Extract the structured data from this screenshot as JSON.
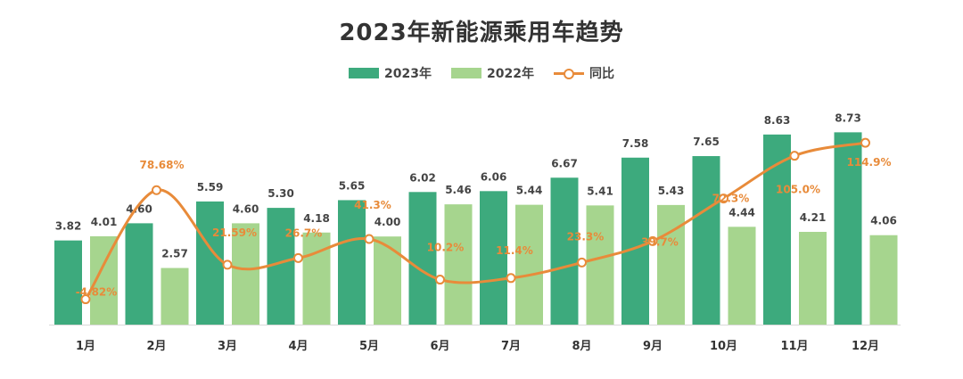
{
  "chart_data": {
    "type": "bar",
    "title": "2023年新能源乘用车趋势",
    "categories": [
      "1月",
      "2月",
      "3月",
      "4月",
      "5月",
      "6月",
      "7月",
      "8月",
      "9月",
      "10月",
      "11月",
      "12月"
    ],
    "series": [
      {
        "name": "2023年",
        "type": "bar",
        "color": "#3DAA7D",
        "values": [
          3.82,
          4.6,
          5.59,
          5.3,
          5.65,
          6.02,
          6.06,
          6.67,
          7.58,
          7.65,
          8.63,
          8.73
        ],
        "labels": [
          "3.82",
          "4.60",
          "5.59",
          "5.30",
          "5.65",
          "6.02",
          "6.06",
          "6.67",
          "7.58",
          "7.65",
          "8.63",
          "8.73"
        ]
      },
      {
        "name": "2022年",
        "type": "bar",
        "color": "#A6D58E",
        "values": [
          4.01,
          2.57,
          4.6,
          4.18,
          4.0,
          5.46,
          5.44,
          5.41,
          5.43,
          4.44,
          4.21,
          4.06
        ],
        "labels": [
          "4.01",
          "2.57",
          "4.60",
          "4.18",
          "4.00",
          "5.46",
          "5.44",
          "5.41",
          "5.43",
          "4.44",
          "4.21",
          "4.06"
        ]
      },
      {
        "name": "同比",
        "type": "line",
        "color": "#E88B3A",
        "values": [
          -4.82,
          78.68,
          21.59,
          26.7,
          41.3,
          10.2,
          11.4,
          23.3,
          39.7,
          72.3,
          105.0,
          114.9
        ],
        "labels": [
          "-4.82%",
          "78.68%",
          "21.59%",
          "26.7%",
          "41.3%",
          "10.2%",
          "11.4%",
          "23.3%",
          "39.7%",
          "72.3%",
          "105.0%",
          "114.9%"
        ]
      }
    ],
    "ylim": [
      0,
      10
    ],
    "y2lim": [
      -30,
      150
    ],
    "grid": false,
    "legend": "top-center"
  }
}
